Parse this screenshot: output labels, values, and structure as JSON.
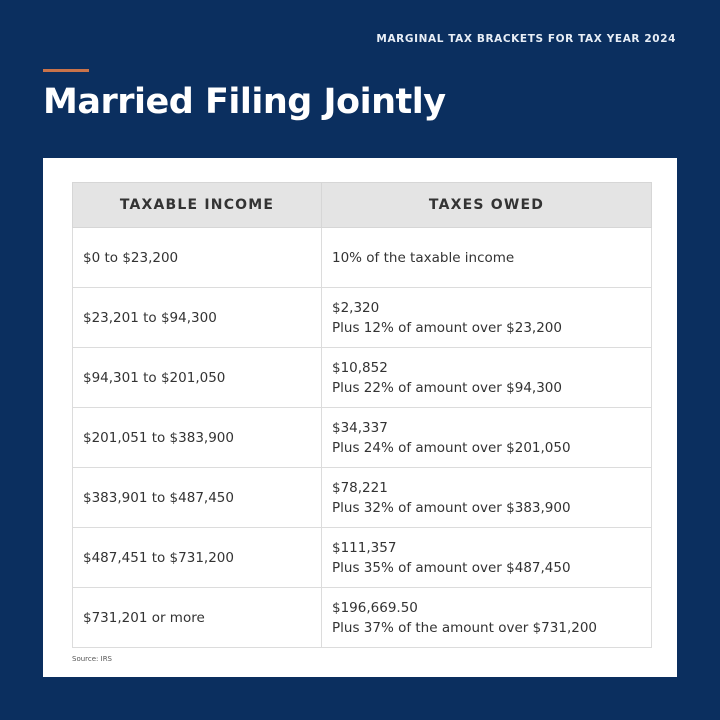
{
  "kicker": "MARGINAL TAX BRACKETS FOR TAX YEAR 2024",
  "title": "Married Filing Jointly",
  "colors": {
    "background": "#0b2f5f",
    "accent": "#c9734a",
    "header_row": "#e4e4e4"
  },
  "table": {
    "headers": [
      "TAXABLE INCOME",
      "TAXES OWED"
    ],
    "rows": [
      {
        "income": "$0 to $23,200",
        "base": "10% of the taxable income",
        "plus": ""
      },
      {
        "income": "$23,201 to $94,300",
        "base": "$2,320",
        "plus": "Plus 12% of amount over $23,200"
      },
      {
        "income": "$94,301 to $201,050",
        "base": "$10,852",
        "plus": "Plus 22% of amount over $94,300"
      },
      {
        "income": "$201,051 to $383,900",
        "base": "$34,337",
        "plus": "Plus 24% of amount over $201,050"
      },
      {
        "income": "$383,901 to $487,450",
        "base": "$78,221",
        "plus": "Plus 32% of amount over $383,900"
      },
      {
        "income": "$487,451 to $731,200",
        "base": "$111,357",
        "plus": "Plus 35% of amount over $487,450"
      },
      {
        "income": "$731,201 or more",
        "base": "$196,669.50",
        "plus": "Plus 37% of the amount over $731,200"
      }
    ]
  },
  "source": "Source: IRS"
}
